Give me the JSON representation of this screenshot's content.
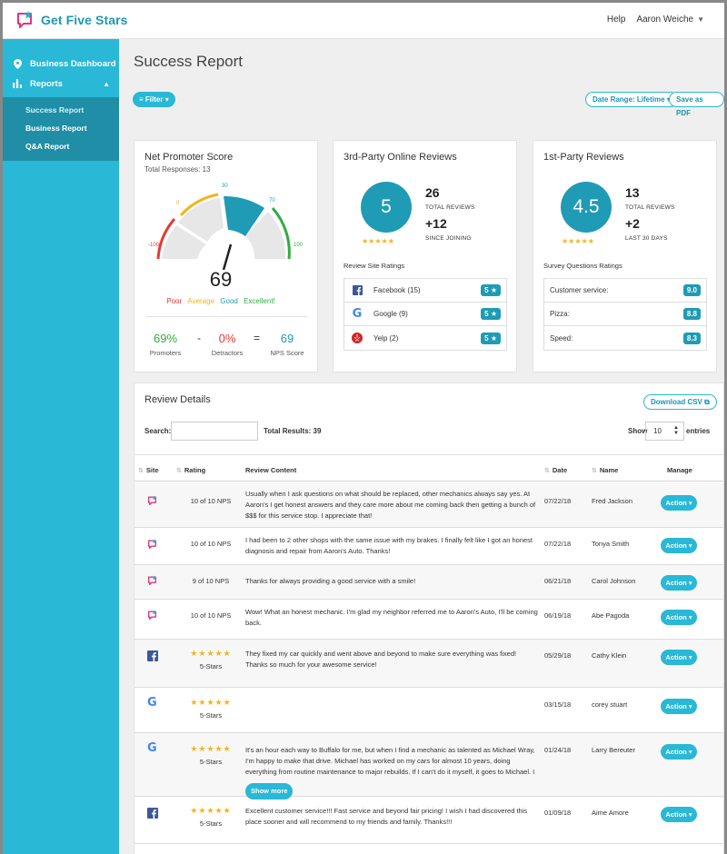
{
  "app": {
    "name": "Get Five Stars"
  },
  "header": {
    "help": "Help",
    "user": "Aaron Weiche"
  },
  "sidebar": {
    "items": [
      {
        "label": "Business Dashboard"
      },
      {
        "label": "Reports"
      }
    ],
    "sub_items": [
      {
        "label": "Success Report"
      },
      {
        "label": "Business Report"
      },
      {
        "label": "Q&A Report"
      }
    ]
  },
  "page": {
    "title": "Success Report",
    "filter_label": "Filter ▾",
    "date_range_label": "Date Range: Lifetime ▾",
    "save_pdf_label": "Save as PDF"
  },
  "nps": {
    "title": "Net Promoter Score",
    "total_responses": "Total Responses: 13",
    "score": "69",
    "gauge_labels": [
      "-100",
      "0",
      "30",
      "70",
      "100"
    ],
    "legend": [
      "Poor",
      "Average",
      "Good",
      "Excellent!"
    ],
    "promoters_value": "69%",
    "promoters_label": "Promoters",
    "minus": "-",
    "detractors_value": "0%",
    "detractors_label": "Detractors",
    "equals": "=",
    "nps_value": "69",
    "nps_label": "NPS Score",
    "colors": {
      "poor": "#e53935",
      "average": "#f5b21b",
      "good": "#1f9bb5",
      "excellent": "#2eae3f"
    }
  },
  "third_party": {
    "title": "3rd-Party Online Reviews",
    "score": "5",
    "stars": "★★★★★",
    "total_reviews": "26",
    "total_reviews_label": "TOTAL REVIEWS",
    "change": "+12",
    "change_label": "SINCE JOINING",
    "ratings_label": "Review Site Ratings",
    "sites": [
      {
        "name": "Facebook (15)",
        "rating": "5 ★",
        "icon": "facebook-icon"
      },
      {
        "name": "Google (9)",
        "rating": "5 ★",
        "icon": "google-icon"
      },
      {
        "name": "Yelp (2)",
        "rating": "5 ★",
        "icon": "yelp-icon"
      }
    ]
  },
  "first_party": {
    "title": "1st-Party Reviews",
    "score": "4.5",
    "stars": "★★★★★",
    "total_reviews": "13",
    "total_reviews_label": "TOTAL REVIEWS",
    "change": "+2",
    "change_label": "LAST 30 DAYS",
    "ratings_label": "Survey Questions Ratings",
    "questions": [
      {
        "name": "Customer service:",
        "rating": "9.0"
      },
      {
        "name": "Pizza:",
        "rating": "8.8"
      },
      {
        "name": "Speed:",
        "rating": "8.3"
      }
    ]
  },
  "details": {
    "title": "Review Details",
    "download_label": "Download CSV",
    "search_label": "Search:",
    "total_results": "Total Results: 39",
    "show_label": "Show",
    "show_value": "10",
    "entries_label": "entries",
    "columns": [
      "Site",
      "Rating",
      "Review Content",
      "Date",
      "Name",
      "Manage"
    ],
    "action_label": "Action ▾",
    "show_more_label": "Show more",
    "rows": [
      {
        "site": "gfs-icon",
        "rating": "10 of 10 NPS",
        "stars": "",
        "content": "Usually when I ask questions on what should be replaced, other mechanics always say yes. At Aaron's I get honest answers and they care more about me coming back then getting a bunch of $$$ for this service stop. I appreciate that!",
        "date": "07/22/18",
        "name": "Fred Jackson"
      },
      {
        "site": "gfs-icon",
        "rating": "10 of 10 NPS",
        "stars": "",
        "content": "I had been to 2 other shops with the same issue with my brakes. I finally felt like I got an honest diagnosis and repair from Aaron's Auto. Thanks!",
        "date": "07/22/18",
        "name": "Tonya Smith"
      },
      {
        "site": "gfs-icon",
        "rating": "9 of 10 NPS",
        "stars": "",
        "content": "Thanks for always providing a good service with a smile!",
        "date": "06/21/18",
        "name": "Carol Johnson"
      },
      {
        "site": "gfs-icon",
        "rating": "10 of 10 NPS",
        "stars": "",
        "content": "Wow! What an honest mechanic. I'm glad my neighbor referred me to Aaron's Auto, I'll be coming back.",
        "date": "06/19/18",
        "name": "Abe Pagoda"
      },
      {
        "site": "facebook-icon",
        "rating": "5-Stars",
        "stars": "★★★★★",
        "content": "They fixed my car quickly and went above and beyond to make sure everything was fixed! Thanks so much for your awesome service!",
        "date": "05/29/18",
        "name": "Cathy Klein"
      },
      {
        "site": "google-icon",
        "rating": "5-Stars",
        "stars": "★★★★★",
        "content": "",
        "date": "03/15/18",
        "name": "corey stuart"
      },
      {
        "site": "google-icon",
        "rating": "5-Stars",
        "stars": "★★★★★",
        "content": "It's an hour each way to Buffalo for me, but when I find a mechanic as talented as Michael Wray, I'm happy to make that drive. Michael has worked on my cars for almost 10 years, doing everything from routine maintenance to major rebuilds. If I can't do it myself, it goes to Michael. I",
        "date": "01/24/18",
        "name": "Larry Bereuter"
      },
      {
        "site": "facebook-icon",
        "rating": "5-Stars",
        "stars": "★★★★★",
        "content": "Excellent customer service!!! Fast service and beyond fair pricing! I wish I had discovered this place sooner and will recommend to my friends and family. Thanks!!!",
        "date": "01/09/18",
        "name": "Aime Amore"
      }
    ]
  }
}
